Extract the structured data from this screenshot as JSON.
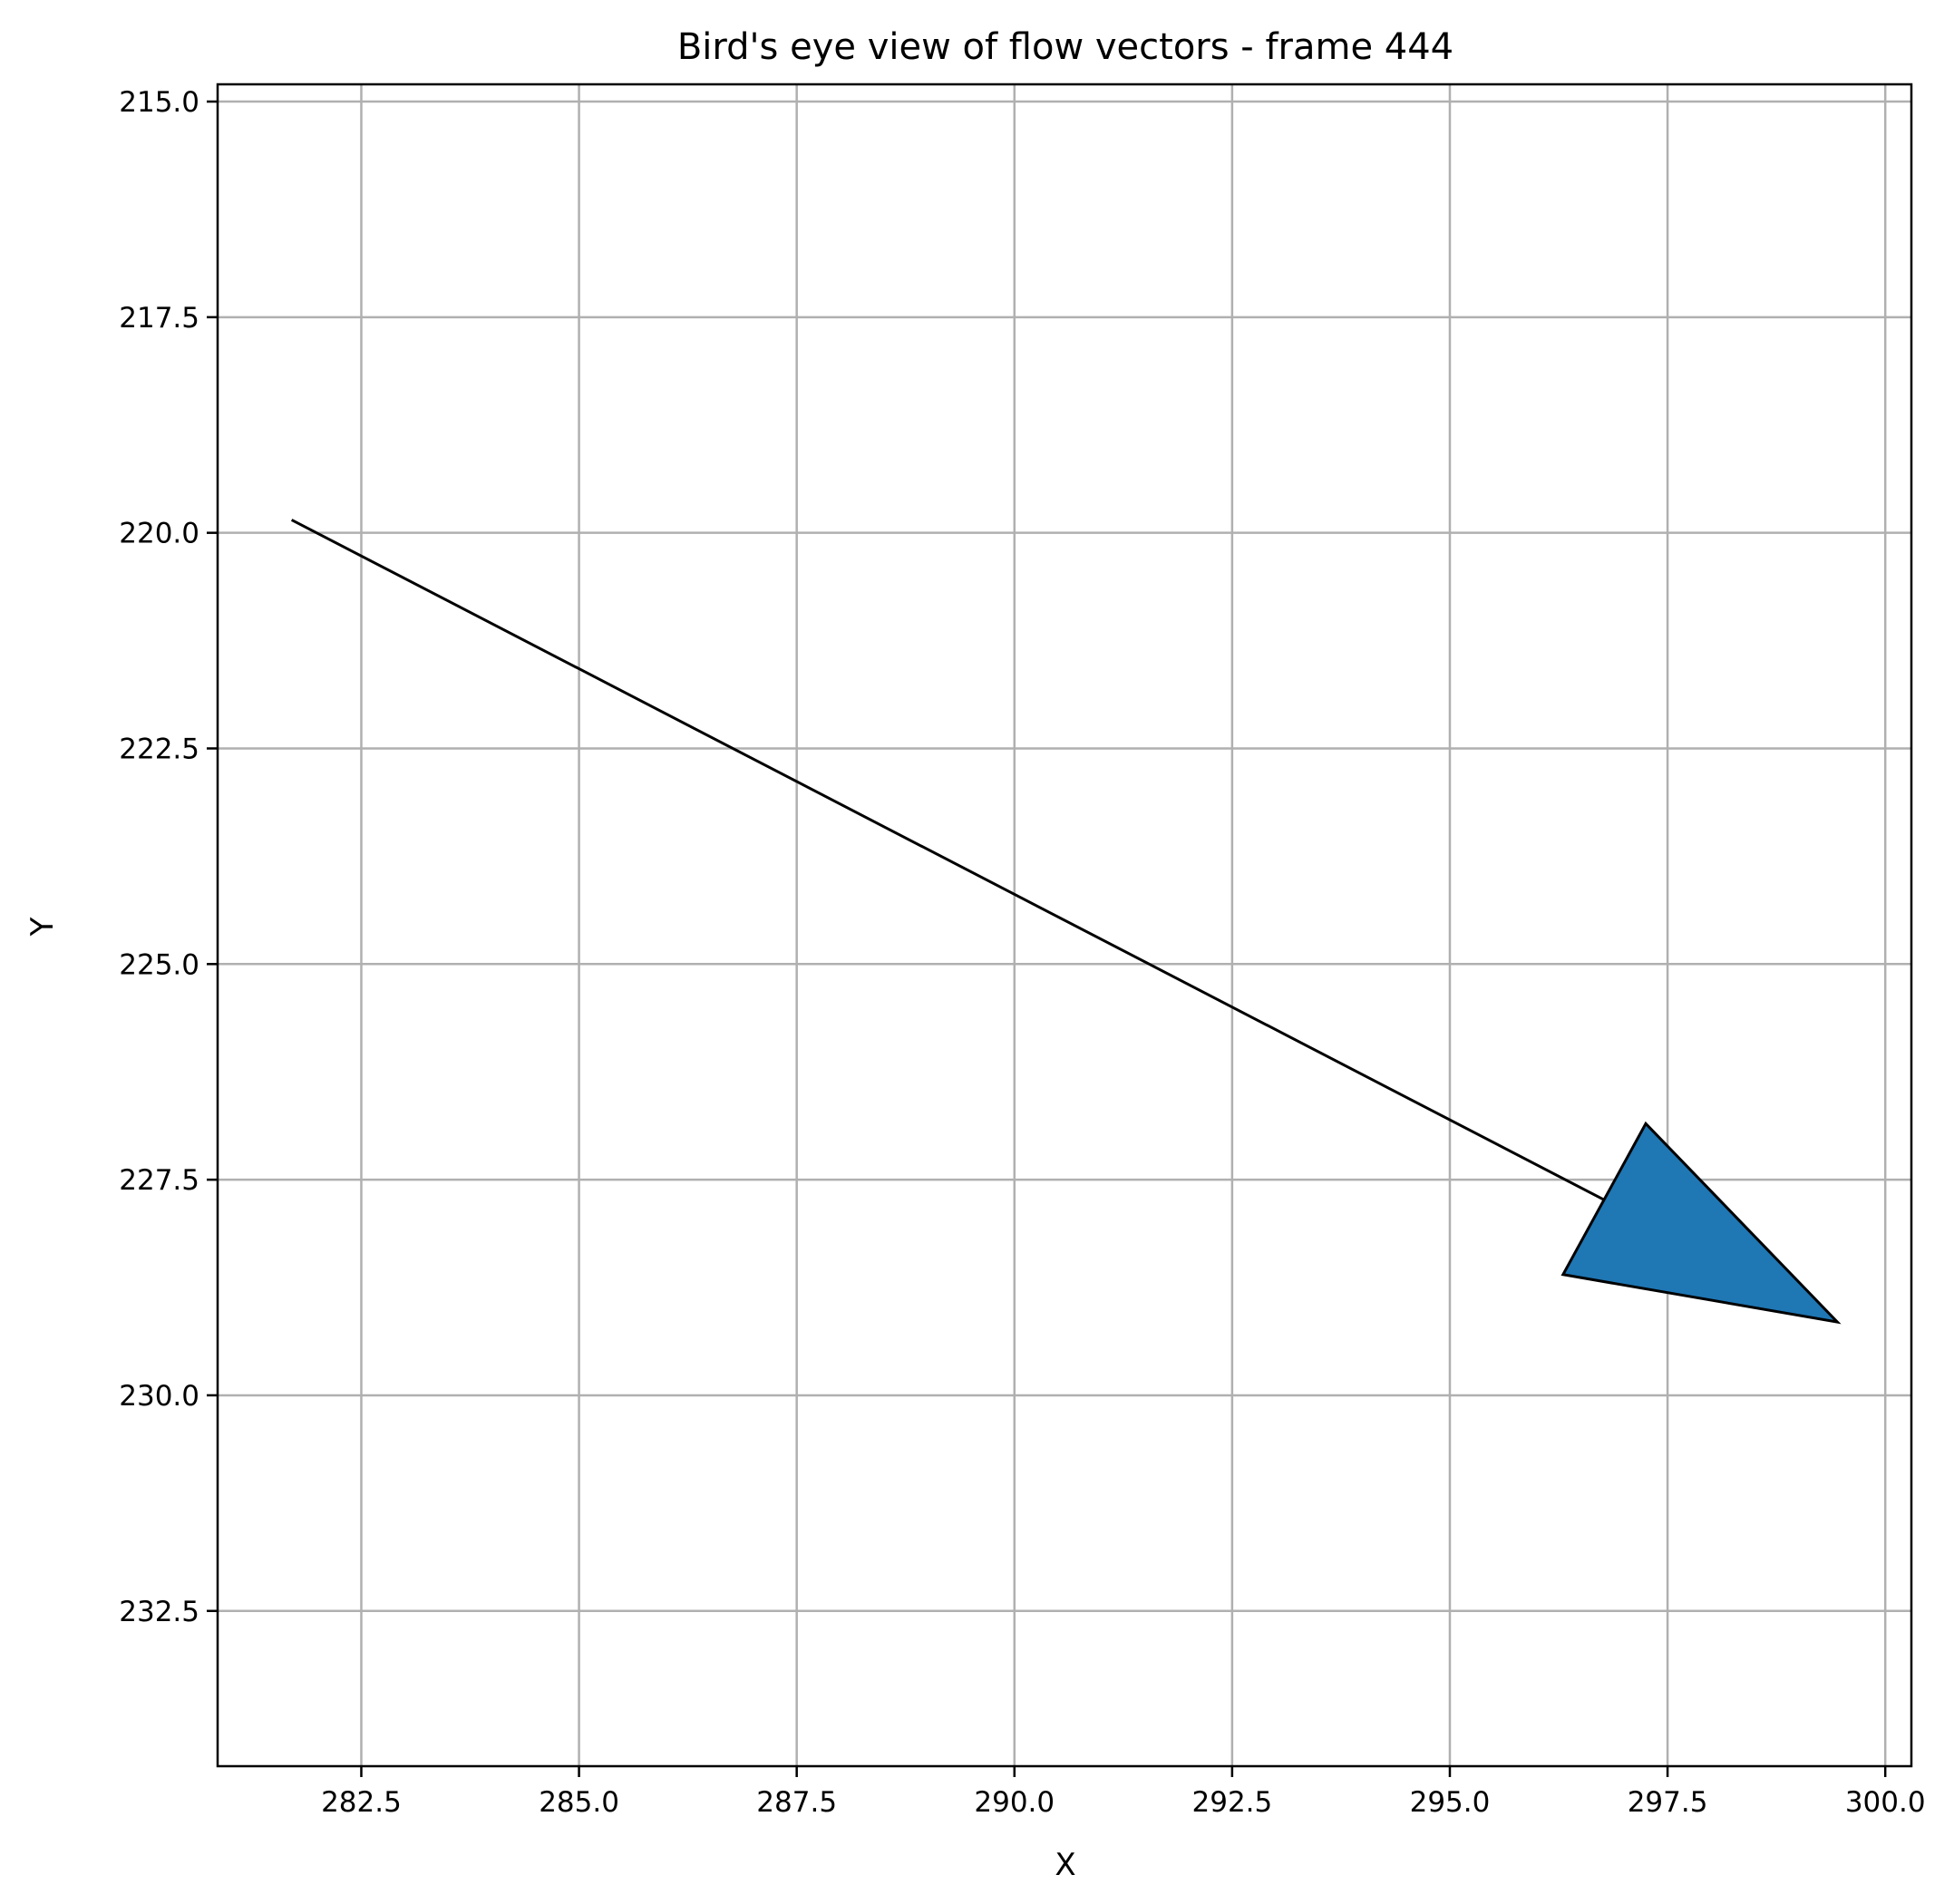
{
  "chart_data": {
    "type": "line",
    "title": "Bird's eye view of flow vectors - frame 444",
    "xlabel": "X",
    "ylabel": "Y",
    "xlim": [
      280.85,
      300.3
    ],
    "ylim": [
      234.3,
      214.8
    ],
    "y_inverted": true,
    "grid": true,
    "x_ticks": [
      282.5,
      285.0,
      287.5,
      290.0,
      292.5,
      295.0,
      297.5,
      300.0
    ],
    "y_ticks": [
      215.0,
      217.5,
      220.0,
      222.5,
      225.0,
      227.5,
      230.0,
      232.5
    ],
    "x_tick_labels": [
      "282.5",
      "285.0",
      "287.5",
      "290.0",
      "292.5",
      "295.0",
      "297.5",
      "300.0"
    ],
    "y_tick_labels": [
      "215.0",
      "217.5",
      "220.0",
      "222.5",
      "225.0",
      "227.5",
      "230.0",
      "232.5"
    ],
    "vector": {
      "tail": [
        281.7,
        219.85
      ],
      "shaft_end": [
        296.9,
        227.8
      ],
      "head": [
        [
          297.25,
          226.85
        ],
        [
          299.45,
          229.15
        ],
        [
          296.3,
          228.6
        ]
      ],
      "shaft_color": "#000000",
      "head_fill": "#1f77b4",
      "head_edge": "#000000"
    }
  }
}
